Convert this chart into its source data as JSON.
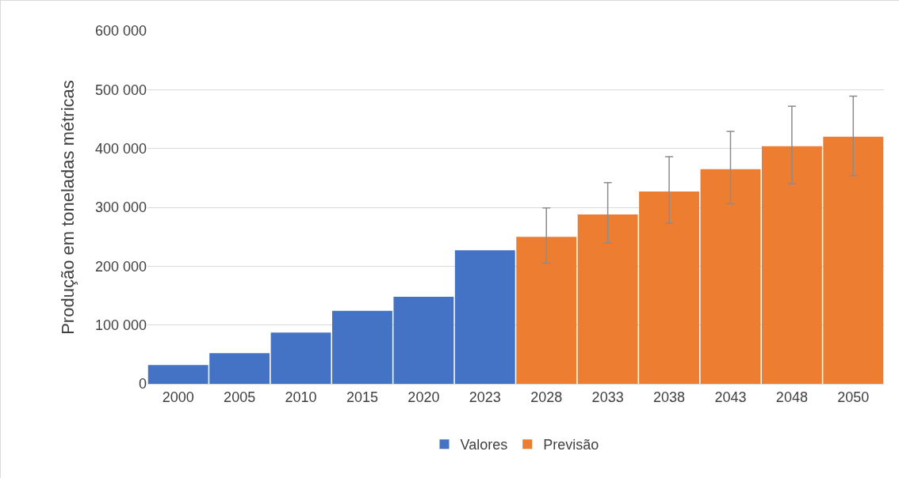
{
  "chart_data": {
    "type": "bar",
    "ylabel": "Produção em toneladas métricas",
    "categories": [
      "2000",
      "2005",
      "2010",
      "2015",
      "2020",
      "2023",
      "2028",
      "2033",
      "2038",
      "2043",
      "2048",
      "2050"
    ],
    "series": [
      {
        "name": "Valores",
        "color": "#4472c4",
        "values": [
          32000,
          52000,
          87000,
          124000,
          148000,
          227000,
          null,
          null,
          null,
          null,
          null,
          null
        ]
      },
      {
        "name": "Previsão",
        "color": "#ed7d31",
        "values": [
          null,
          null,
          null,
          null,
          null,
          null,
          250000,
          288000,
          327000,
          365000,
          404000,
          420000
        ],
        "errors": [
          null,
          null,
          null,
          null,
          null,
          null,
          [
            205000,
            299000
          ],
          [
            239000,
            342000
          ],
          [
            273000,
            386000
          ],
          [
            306000,
            429000
          ],
          [
            340000,
            472000
          ],
          [
            354000,
            489000
          ]
        ]
      }
    ],
    "ylim": [
      0,
      600000
    ],
    "yticks": [
      {
        "value": 0,
        "label": "0"
      },
      {
        "value": 100000,
        "label": "100 000"
      },
      {
        "value": 200000,
        "label": "200 000"
      },
      {
        "value": 300000,
        "label": "300 000"
      },
      {
        "value": 400000,
        "label": "400 000"
      },
      {
        "value": 500000,
        "label": "500 000"
      },
      {
        "value": 600000,
        "label": "600 000"
      }
    ],
    "grid": "y",
    "legend": "bottom"
  }
}
